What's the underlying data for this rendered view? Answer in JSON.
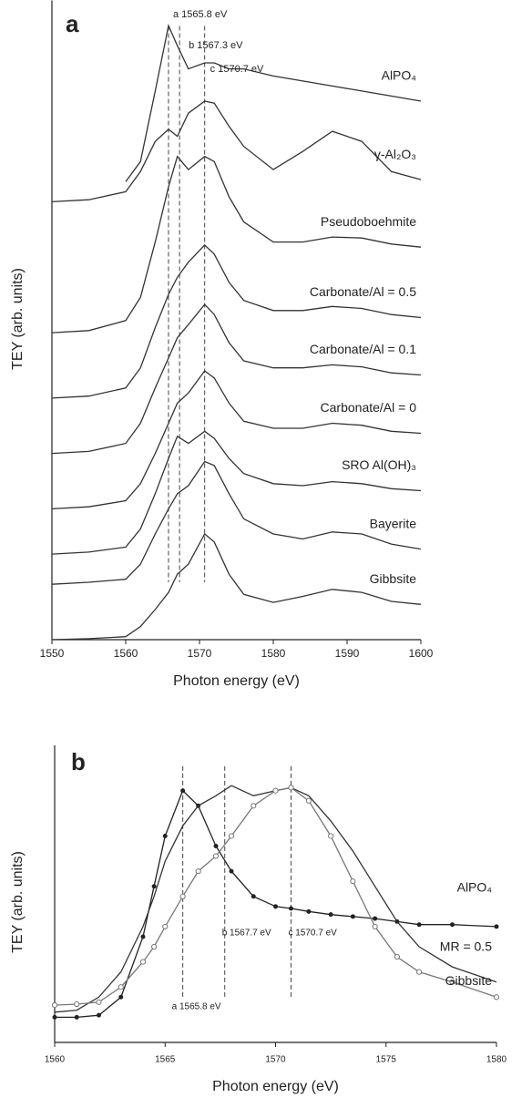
{
  "chart_data": [
    {
      "type": "line",
      "title": "a",
      "xlabel": "Photon energy (eV)",
      "ylabel": "TEY (arb. units)",
      "x": [
        1550,
        1555,
        1560,
        1562,
        1564,
        1565.8,
        1567,
        1568.5,
        1570.7,
        1572,
        1574,
        1576,
        1580,
        1584,
        1588,
        1592,
        1596,
        1600
      ],
      "xlim": [
        1550,
        1600
      ],
      "xticks": [
        1550,
        1560,
        1570,
        1580,
        1590,
        1600
      ],
      "ylim": [
        0,
        63.5
      ],
      "annotations": [
        {
          "text": "a 1565.8 eV",
          "x": 1565.8
        },
        {
          "text": "b 1567.3 eV",
          "x": 1567.3
        },
        {
          "text": "c 1570.7 eV",
          "x": 1570.7
        }
      ],
      "series": [
        {
          "name": "AlPO₄",
          "color": "#333333",
          "values": [
            null,
            null,
            45.5,
            47.5,
            54.5,
            61.0,
            59.0,
            56.7,
            57.3,
            57.3,
            56.7,
            56.7,
            56.0,
            55.5,
            55.0,
            54.5,
            54.0,
            53.5
          ]
        },
        {
          "name": "γ-Al₂O₃",
          "color": "#333333",
          "values": [
            43.5,
            43.7,
            44.5,
            46.5,
            49.5,
            50.7,
            50.0,
            52.3,
            53.5,
            53.3,
            51.0,
            49.0,
            46.7,
            48.5,
            50.5,
            49.5,
            46.5,
            45.7
          ]
        },
        {
          "name": "Pseudoboehmite",
          "color": "#333333",
          "values": [
            30.5,
            30.7,
            31.7,
            34.0,
            39.5,
            45.0,
            48.0,
            46.7,
            48.0,
            47.5,
            44.0,
            41.5,
            39.5,
            39.5,
            40.0,
            39.9,
            39.3,
            39.0
          ]
        },
        {
          "name": "Carbonate/Al = 0.5",
          "color": "#333333",
          "values": [
            24.0,
            24.2,
            25.0,
            27.0,
            31.0,
            34.3,
            36.0,
            37.5,
            39.2,
            38.3,
            35.5,
            33.7,
            32.7,
            32.7,
            33.1,
            32.9,
            32.3,
            32.0
          ]
        },
        {
          "name": "Carbonate/Al = 0.1",
          "color": "#333333",
          "values": [
            18.5,
            18.7,
            19.5,
            21.5,
            25.0,
            28.0,
            30.0,
            31.3,
            33.3,
            32.3,
            29.5,
            27.7,
            27.0,
            27.0,
            27.3,
            27.1,
            26.5,
            26.3
          ]
        },
        {
          "name": "Carbonate/Al = 0",
          "color": "#333333",
          "values": [
            13.0,
            13.2,
            13.8,
            15.5,
            18.5,
            21.5,
            23.5,
            24.5,
            26.7,
            26.0,
            23.5,
            21.7,
            21.0,
            21.0,
            21.5,
            21.3,
            20.7,
            20.5
          ]
        },
        {
          "name": "SRO Al(OH)₃",
          "color": "#333333",
          "values": [
            8.5,
            8.7,
            9.2,
            11.0,
            14.5,
            18.0,
            20.2,
            19.5,
            20.7,
            20.0,
            18.0,
            16.5,
            15.5,
            15.3,
            15.7,
            15.5,
            15.0,
            14.8
          ]
        },
        {
          "name": "Bayerite",
          "color": "#333333",
          "values": [
            5.5,
            5.7,
            6.0,
            7.5,
            10.5,
            13.0,
            14.5,
            15.3,
            17.7,
            17.3,
            14.5,
            12.0,
            10.5,
            10.0,
            10.7,
            10.5,
            9.5,
            9.0
          ]
        },
        {
          "name": "Gibbsite",
          "color": "#333333",
          "values": [
            0,
            0.1,
            0.3,
            1.3,
            3.0,
            4.7,
            6.5,
            7.5,
            10.5,
            9.7,
            6.5,
            4.5,
            3.7,
            4.3,
            5.0,
            4.7,
            3.8,
            3.5
          ]
        }
      ]
    },
    {
      "type": "line",
      "title": "b",
      "xlabel": "Photon energy (eV)",
      "ylabel": "TEY (arb. units)",
      "x": [
        1560,
        1561,
        1562,
        1563,
        1564,
        1564.5,
        1565,
        1565.8,
        1566.5,
        1567.3,
        1568,
        1569,
        1570,
        1570.7,
        1571.5,
        1572.5,
        1573.5,
        1574.5,
        1575.5,
        1576.5,
        1578,
        1580
      ],
      "xlim": [
        1560,
        1580
      ],
      "xticks": [
        1560,
        1565,
        1570,
        1575,
        1580
      ],
      "ylim": [
        0,
        29.5
      ],
      "annotations": [
        {
          "text": "a 1565.8 eV",
          "x": 1565.8
        },
        {
          "text": "b 1567.7 eV",
          "x": 1567.7
        },
        {
          "text": "c 1570.7 eV",
          "x": 1570.7
        }
      ],
      "series": [
        {
          "name": "AlPO₄",
          "color": "#222222",
          "marker": "dot",
          "values": [
            2.5,
            2.5,
            2.7,
            4.5,
            10.5,
            15.5,
            20.5,
            25.0,
            23.5,
            19.5,
            17.0,
            14.5,
            13.5,
            13.3,
            13.0,
            12.7,
            12.5,
            12.3,
            12.0,
            11.7,
            11.7,
            11.5
          ]
        },
        {
          "name": "MR = 0.5",
          "color": "#333333",
          "values": [
            3.0,
            3.2,
            4.5,
            7.0,
            11.5,
            14.5,
            18.0,
            21.5,
            23.5,
            24.5,
            25.5,
            24.5,
            25.0,
            25.3,
            24.5,
            22.0,
            19.0,
            15.5,
            12.0,
            9.5,
            7.5,
            6.0
          ]
        },
        {
          "name": "Gibbsite",
          "color": "#777777",
          "marker": "open-circle",
          "values": [
            3.7,
            3.8,
            4.0,
            5.5,
            8.0,
            9.5,
            11.5,
            14.5,
            17.0,
            18.5,
            20.5,
            23.5,
            25.0,
            25.3,
            24.0,
            20.5,
            16.0,
            11.5,
            8.5,
            7.0,
            6.0,
            4.5
          ]
        }
      ]
    }
  ]
}
